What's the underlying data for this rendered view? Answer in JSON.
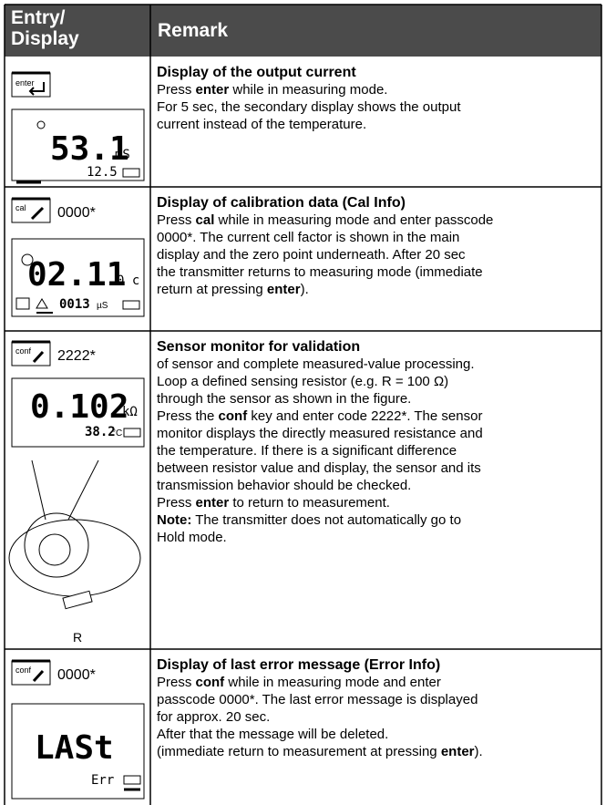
{
  "header": {
    "entry": "Entry/ Display",
    "remark": "Remark"
  },
  "rows": [
    {
      "entry": {
        "key": "enter",
        "lcd": {
          "main": "53.1",
          "unit": "mS",
          "secondary": "12.5"
        }
      },
      "remark": {
        "title": "Display of the output current",
        "lines": [
          [
            "Press ",
            {
              "b": "enter"
            },
            " while in measuring mode."
          ],
          [
            "For 5 sec, the secondary display shows the output"
          ],
          [
            "current instead of the temperature."
          ]
        ]
      }
    },
    {
      "entry": {
        "key": "cal",
        "code": "0000*",
        "lcd": {
          "main": "02.11",
          "unit": "0 c",
          "secondary": "0013",
          "secondary_unit": "µS"
        }
      },
      "remark": {
        "title": "Display of calibration data (Cal Info)",
        "lines": [
          [
            "Press ",
            {
              "b": "cal"
            },
            " while in measuring mode and enter passcode"
          ],
          [
            "0000*. The current cell factor is shown in the main"
          ],
          [
            "display and the zero point underneath. After 20 sec"
          ],
          [
            "the transmitter returns to measuring mode (immediate"
          ],
          [
            "return at pressing ",
            {
              "b": "enter"
            },
            ")."
          ]
        ]
      }
    },
    {
      "entry": {
        "key": "conf",
        "code": "2222*",
        "lcd": {
          "main": "0.102",
          "unit": "kΩ",
          "secondary": "38.2",
          "secondary_unit": "°C"
        },
        "figure_label": "R"
      },
      "remark": {
        "title": "Sensor monitor for validation",
        "lines": [
          [
            "of sensor and complete measured-value processing."
          ],
          [
            "Loop a defined sensing resistor (e.g. R = 100 Ω)"
          ],
          [
            "through the sensor as shown in the figure."
          ],
          [
            "Press the ",
            {
              "b": "conf"
            },
            " key and enter code 2222*. The sensor"
          ],
          [
            "monitor displays the directly measured resistance and"
          ],
          [
            "the temperature. If there is a significant difference"
          ],
          [
            "between resistor value and display, the sensor and its"
          ],
          [
            "transmission behavior should be checked."
          ],
          [
            "Press ",
            {
              "b": "enter"
            },
            " to return to measurement."
          ],
          [
            {
              "b": "Note:"
            },
            " The transmitter does not automatically go to"
          ],
          [
            "Hold mode."
          ]
        ]
      }
    },
    {
      "entry": {
        "key": "conf",
        "code": "0000*",
        "lcd": {
          "main": "LASt",
          "secondary": "Err"
        }
      },
      "remark": {
        "title": "Display of last error message (Error Info)",
        "lines": [
          [
            "Press ",
            {
              "b": "conf"
            },
            " while in measuring mode and enter"
          ],
          [
            "passcode 0000*. The last error message is displayed"
          ],
          [
            "for approx. 20 sec."
          ],
          [
            "After that the message will be deleted."
          ],
          [
            "(immediate return to measurement at pressing ",
            {
              "b": "enter"
            },
            ")."
          ]
        ]
      }
    }
  ]
}
